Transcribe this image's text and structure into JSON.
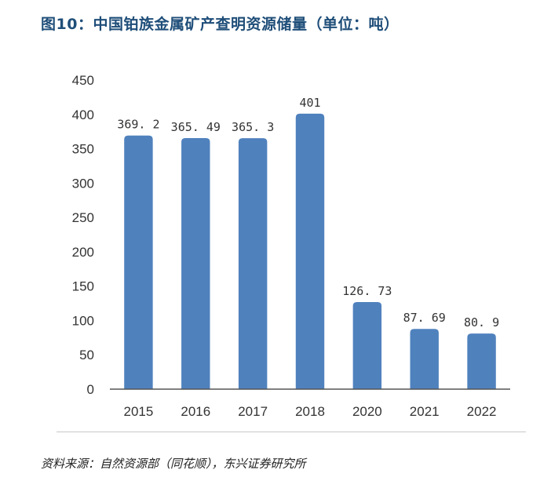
{
  "title": "图10：中国铂族金属矿产查明资源储量（单位：吨）",
  "source": "资料来源：自然资源部（同花顺），东兴证券研究所",
  "colors": {
    "bar": "#4f81bd",
    "title": "#1f4e79",
    "axis": "#555555"
  },
  "chart_data": {
    "type": "bar",
    "categories": [
      "2015",
      "2016",
      "2017",
      "2018",
      "2020",
      "2021",
      "2022"
    ],
    "values": [
      369.2,
      365.49,
      365.3,
      401,
      126.73,
      87.69,
      80.9
    ],
    "data_labels": [
      "369. 2",
      "365. 49",
      "365. 3",
      "401",
      "126. 73",
      "87. 69",
      "80. 9"
    ],
    "y_ticks": [
      "0",
      "50",
      "100",
      "150",
      "200",
      "250",
      "300",
      "350",
      "400",
      "450"
    ],
    "ylim": [
      0,
      450
    ],
    "grid": false,
    "legend": "none"
  }
}
